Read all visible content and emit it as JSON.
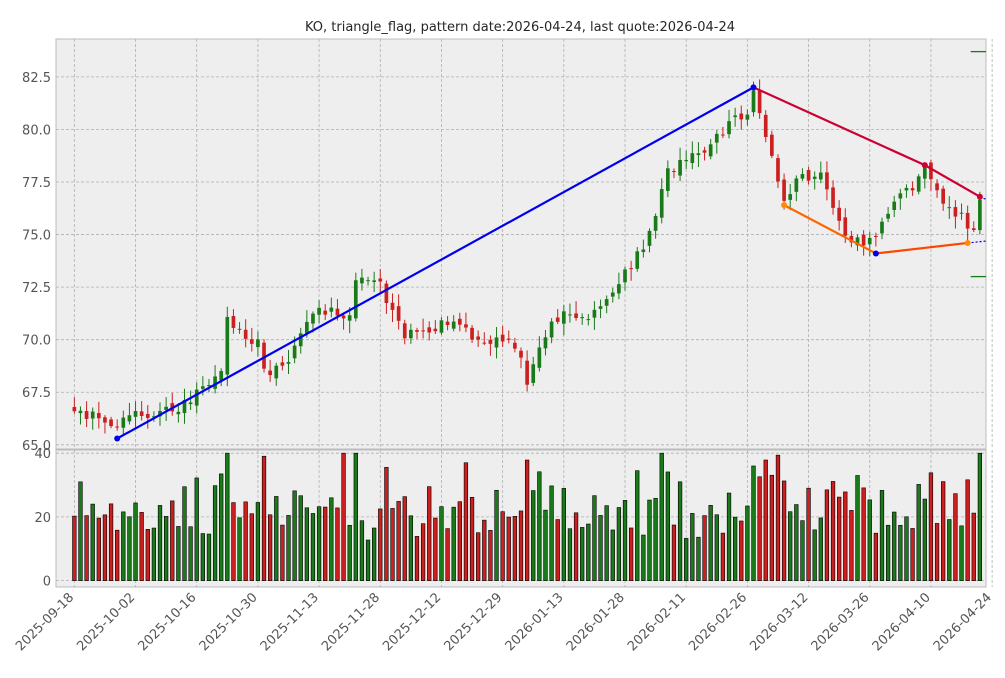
{
  "chart_data": {
    "type": "candlestick",
    "title": "KO, triangle_flag, pattern date:2026-04-24, last quote:2026-04-24",
    "price_panel": {
      "ylim": [
        64.8,
        84.3
      ],
      "yticks": [
        65.0,
        67.5,
        70.0,
        72.5,
        75.0,
        77.5,
        80.0,
        82.5
      ],
      "ytick_labels": [
        "65.0",
        "67.5",
        "70.0",
        "72.5",
        "75.0",
        "77.5",
        "80.0",
        "82.5"
      ],
      "grid": true
    },
    "volume_panel": {
      "ylim": [
        -2,
        41
      ],
      "yticks": [
        0,
        20,
        40
      ],
      "ytick_labels": [
        "0",
        "20",
        "40"
      ],
      "grid": true
    },
    "x_axis": {
      "start": "2025-09-18",
      "end": "2026-04-24",
      "xlim": [
        -3,
        149
      ],
      "ticks": [
        {
          "idx": 0,
          "label": "2025-09-18"
        },
        {
          "idx": 10,
          "label": "2025-10-02"
        },
        {
          "idx": 20,
          "label": "2025-10-16"
        },
        {
          "idx": 30,
          "label": "2025-10-30"
        },
        {
          "idx": 40,
          "label": "2025-11-13"
        },
        {
          "idx": 50,
          "label": "2025-11-28"
        },
        {
          "idx": 60,
          "label": "2025-12-12"
        },
        {
          "idx": 70,
          "label": "2025-12-29"
        },
        {
          "idx": 80,
          "label": "2026-01-13"
        },
        {
          "idx": 90,
          "label": "2026-01-28"
        },
        {
          "idx": 100,
          "label": "2026-02-11"
        },
        {
          "idx": 110,
          "label": "2026-02-26"
        },
        {
          "idx": 120,
          "label": "2026-03-12"
        },
        {
          "idx": 130,
          "label": "2026-03-26"
        },
        {
          "idx": 140,
          "label": "2026-04-10"
        },
        {
          "idx": 150,
          "label": "2026-04-24"
        }
      ]
    },
    "price_keypoints": [
      [
        0,
        66.6
      ],
      [
        3,
        66.4
      ],
      [
        6,
        65.9
      ],
      [
        10,
        66.4
      ],
      [
        16,
        66.6
      ],
      [
        22,
        67.8
      ],
      [
        24,
        68.4
      ],
      [
        25,
        71.2
      ],
      [
        28,
        70.0
      ],
      [
        30,
        70.1
      ],
      [
        31,
        68.4
      ],
      [
        35,
        68.7
      ],
      [
        37,
        70.3
      ],
      [
        40,
        71.5
      ],
      [
        45,
        71.1
      ],
      [
        46,
        73.0
      ],
      [
        50,
        72.7
      ],
      [
        51,
        71.6
      ],
      [
        54,
        70.3
      ],
      [
        58,
        70.4
      ],
      [
        62,
        71.0
      ],
      [
        66,
        70.0
      ],
      [
        70,
        70.1
      ],
      [
        72,
        69.8
      ],
      [
        74,
        68.0
      ],
      [
        76,
        69.8
      ],
      [
        80,
        71.5
      ],
      [
        84,
        71.0
      ],
      [
        90,
        73.1
      ],
      [
        94,
        75.0
      ],
      [
        97,
        78.0
      ],
      [
        100,
        78.6
      ],
      [
        104,
        79.3
      ],
      [
        108,
        80.5
      ],
      [
        110,
        80.8
      ],
      [
        111,
        81.8
      ],
      [
        113,
        79.8
      ],
      [
        116,
        76.4
      ],
      [
        118,
        77.6
      ],
      [
        122,
        77.9
      ],
      [
        124,
        76.5
      ],
      [
        126,
        74.9
      ],
      [
        130,
        74.6
      ],
      [
        133,
        76.2
      ],
      [
        135,
        76.8
      ],
      [
        138,
        77.6
      ],
      [
        139,
        78.2
      ],
      [
        142,
        76.3
      ],
      [
        145,
        75.8
      ],
      [
        147,
        75.2
      ],
      [
        148,
        76.7
      ]
    ],
    "volume_seed": 4321,
    "green_color": "#1a7a1a",
    "red_color": "#cc1f1f",
    "pattern_lines": [
      {
        "name": "pole",
        "color": "#0000ee",
        "points": [
          [
            7,
            65.3
          ],
          [
            111,
            82.0
          ]
        ]
      },
      {
        "name": "upper",
        "color": "#cc0033",
        "points": [
          [
            111,
            82.0
          ],
          [
            139,
            78.3
          ],
          [
            148,
            76.8
          ]
        ]
      },
      {
        "name": "lower",
        "color": "#ff6600",
        "points": [
          [
            116,
            76.4
          ],
          [
            131,
            74.1
          ]
        ]
      },
      {
        "name": "lower_flat",
        "color": "#ff4400",
        "points": [
          [
            131,
            74.1
          ],
          [
            146,
            74.6
          ]
        ]
      }
    ],
    "projection_lines": [
      {
        "name": "upper_proj",
        "color": "#0000ee",
        "points": [
          [
            148,
            76.8
          ],
          [
            156,
            75.8
          ]
        ]
      },
      {
        "name": "lower_proj",
        "color": "#0000ee",
        "points": [
          [
            146,
            74.6
          ],
          [
            156,
            74.9
          ]
        ]
      }
    ],
    "marker_points": [
      {
        "x": 7,
        "y": 65.3,
        "color": "#0000ee"
      },
      {
        "x": 111,
        "y": 82.0,
        "color": "#0000ee"
      },
      {
        "x": 131,
        "y": 74.1,
        "color": "#0000ee"
      },
      {
        "x": 116,
        "y": 76.4,
        "color": "#ff8c00"
      },
      {
        "x": 146,
        "y": 74.6,
        "color": "#ff8c00"
      },
      {
        "x": 139,
        "y": 78.3,
        "color": "#cc0033"
      },
      {
        "x": 148,
        "y": 76.8,
        "color": "#cc0033"
      }
    ],
    "target_levels": [
      {
        "y": 83.7,
        "color": "#1a7a1a"
      },
      {
        "y": 73.0,
        "color": "#1a7a1a"
      }
    ]
  }
}
